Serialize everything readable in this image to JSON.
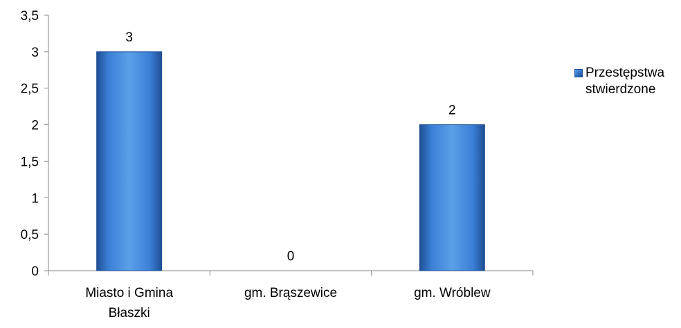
{
  "chart_data": {
    "type": "bar",
    "categories": [
      "Miasto i Gmina Błaszki",
      "gm. Brąszewice",
      "gm. Wróblew"
    ],
    "series": [
      {
        "name": "Przestępstwa stwierdzone",
        "values": [
          3,
          0,
          2
        ],
        "data_labels": [
          "3",
          "0",
          "2"
        ]
      }
    ],
    "yticks": [
      "0",
      "0,5",
      "1",
      "1,5",
      "2",
      "2,5",
      "3",
      "3,5"
    ],
    "ylim": [
      0,
      3.5
    ],
    "grid": false,
    "legend_position": "right",
    "colors": {
      "bar_top": "#5aa0e8",
      "bar_mid": "#3a7fd6",
      "bar_bottom": "#1f4f93",
      "axis": "#868686"
    }
  }
}
